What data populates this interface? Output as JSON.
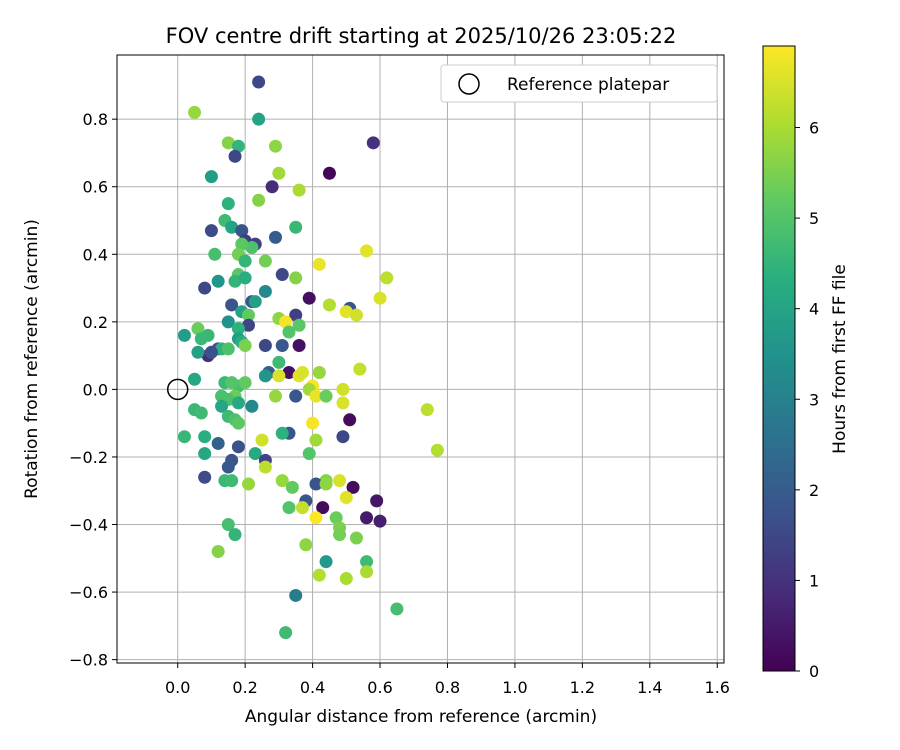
{
  "chart_data": {
    "type": "scatter",
    "title": "FOV centre drift starting at 2025/10/26 23:05:22",
    "xlabel": "Angular distance from reference (arcmin)",
    "ylabel": "Rotation from reference (arcmin)",
    "xlim": [
      -0.18,
      1.62
    ],
    "ylim": [
      -0.81,
      0.99
    ],
    "xticks": [
      0.0,
      0.2,
      0.4,
      0.6,
      0.8,
      1.0,
      1.2,
      1.4,
      1.6
    ],
    "xtick_labels": [
      "0.0",
      "0.2",
      "0.4",
      "0.6",
      "0.8",
      "1.0",
      "1.2",
      "1.4",
      "1.6"
    ],
    "yticks": [
      -0.8,
      -0.6,
      -0.4,
      -0.2,
      0.0,
      0.2,
      0.4,
      0.6,
      0.8
    ],
    "ytick_labels": [
      "−0.8",
      "−0.6",
      "−0.4",
      "−0.2",
      "0.0",
      "0.2",
      "0.4",
      "0.6",
      "0.8"
    ],
    "grid": true,
    "legend": {
      "position": "top-right",
      "entries": [
        "Reference platepar"
      ]
    },
    "reference_point": {
      "x": 0.0,
      "y": 0.0,
      "label": "Reference platepar"
    },
    "colorbar": {
      "label": "Hours from first FF file",
      "colormap": "viridis",
      "range": [
        0,
        6.9
      ],
      "ticks": [
        0,
        1,
        2,
        3,
        4,
        5,
        6
      ],
      "tick_labels": [
        "0",
        "1",
        "2",
        "3",
        "4",
        "5",
        "6"
      ]
    },
    "points": [
      [
        0.24,
        0.91,
        1.5
      ],
      [
        0.05,
        0.82,
        5.8
      ],
      [
        0.24,
        0.8,
        4.0
      ],
      [
        0.58,
        0.73,
        1.0
      ],
      [
        0.15,
        0.73,
        5.6
      ],
      [
        0.18,
        0.72,
        4.5
      ],
      [
        0.29,
        0.72,
        5.7
      ],
      [
        0.17,
        0.69,
        1.5
      ],
      [
        0.45,
        0.64,
        0.1
      ],
      [
        0.3,
        0.64,
        5.9
      ],
      [
        0.1,
        0.63,
        3.8
      ],
      [
        0.28,
        0.6,
        0.9
      ],
      [
        0.36,
        0.59,
        6.0
      ],
      [
        0.15,
        0.55,
        4.4
      ],
      [
        0.24,
        0.56,
        5.6
      ],
      [
        0.14,
        0.5,
        4.7
      ],
      [
        0.16,
        0.48,
        4.0
      ],
      [
        0.35,
        0.48,
        4.6
      ],
      [
        0.1,
        0.47,
        1.6
      ],
      [
        0.19,
        0.47,
        1.8
      ],
      [
        0.2,
        0.44,
        1.3
      ],
      [
        0.23,
        0.43,
        1.4
      ],
      [
        0.22,
        0.42,
        4.9
      ],
      [
        0.19,
        0.43,
        5.1
      ],
      [
        0.29,
        0.45,
        2.0
      ],
      [
        0.11,
        0.4,
        4.8
      ],
      [
        0.18,
        0.4,
        5.4
      ],
      [
        0.56,
        0.41,
        6.6
      ],
      [
        0.2,
        0.38,
        4.5
      ],
      [
        0.26,
        0.38,
        5.4
      ],
      [
        0.42,
        0.37,
        6.7
      ],
      [
        0.62,
        0.33,
        6.2
      ],
      [
        0.18,
        0.34,
        5.1
      ],
      [
        0.17,
        0.32,
        4.5
      ],
      [
        0.2,
        0.33,
        4.3
      ],
      [
        0.12,
        0.32,
        3.6
      ],
      [
        0.31,
        0.34,
        1.5
      ],
      [
        0.35,
        0.33,
        5.6
      ],
      [
        0.08,
        0.3,
        1.5
      ],
      [
        0.26,
        0.29,
        3.2
      ],
      [
        0.39,
        0.27,
        0.3
      ],
      [
        0.6,
        0.27,
        6.5
      ],
      [
        0.22,
        0.26,
        1.7
      ],
      [
        0.23,
        0.26,
        3.9
      ],
      [
        0.16,
        0.25,
        1.8
      ],
      [
        0.45,
        0.25,
        6.1
      ],
      [
        0.51,
        0.24,
        1.8
      ],
      [
        0.5,
        0.23,
        6.6
      ],
      [
        0.53,
        0.22,
        6.4
      ],
      [
        0.19,
        0.23,
        4.0
      ],
      [
        0.21,
        0.22,
        5.2
      ],
      [
        0.35,
        0.22,
        1.3
      ],
      [
        0.3,
        0.21,
        5.7
      ],
      [
        0.32,
        0.2,
        6.8
      ],
      [
        0.15,
        0.2,
        3.5
      ],
      [
        0.21,
        0.19,
        1.4
      ],
      [
        0.36,
        0.19,
        5.1
      ],
      [
        0.02,
        0.16,
        3.8
      ],
      [
        0.06,
        0.18,
        5.3
      ],
      [
        0.18,
        0.18,
        4.4
      ],
      [
        0.09,
        0.16,
        4.6
      ],
      [
        0.33,
        0.17,
        5.0
      ],
      [
        0.18,
        0.15,
        3.8
      ],
      [
        0.07,
        0.15,
        4.6
      ],
      [
        0.19,
        0.14,
        4.3
      ],
      [
        0.2,
        0.13,
        5.5
      ],
      [
        0.26,
        0.13,
        1.5
      ],
      [
        0.31,
        0.13,
        1.9
      ],
      [
        0.36,
        0.13,
        0.3
      ],
      [
        0.12,
        0.12,
        1.6
      ],
      [
        0.13,
        0.12,
        4.4
      ],
      [
        0.15,
        0.12,
        4.9
      ],
      [
        0.09,
        0.1,
        0.9
      ],
      [
        0.06,
        0.11,
        3.9
      ],
      [
        0.1,
        0.11,
        1.7
      ],
      [
        0.3,
        0.08,
        4.7
      ],
      [
        0.54,
        0.06,
        6.3
      ],
      [
        0.33,
        0.05,
        0.3
      ],
      [
        0.27,
        0.05,
        2.0
      ],
      [
        0.36,
        0.04,
        6.6
      ],
      [
        0.37,
        0.05,
        6.5
      ],
      [
        0.42,
        0.05,
        5.8
      ],
      [
        0.3,
        0.04,
        6.5
      ],
      [
        0.26,
        0.04,
        3.6
      ],
      [
        0.05,
        0.03,
        4.1
      ],
      [
        0.14,
        0.02,
        4.6
      ],
      [
        0.18,
        0.01,
        4.8
      ],
      [
        0.16,
        0.02,
        5.0
      ],
      [
        0.2,
        0.02,
        5.2
      ],
      [
        0.4,
        0.01,
        6.8
      ],
      [
        0.39,
        0.0,
        5.9
      ],
      [
        0.49,
        0.0,
        6.4
      ],
      [
        0.41,
        -0.02,
        6.7
      ],
      [
        0.44,
        -0.02,
        5.3
      ],
      [
        0.35,
        -0.02,
        1.9
      ],
      [
        0.29,
        -0.02,
        5.8
      ],
      [
        0.13,
        -0.02,
        4.9
      ],
      [
        0.17,
        -0.02,
        5.3
      ],
      [
        0.15,
        -0.03,
        4.9
      ],
      [
        0.18,
        -0.04,
        4.2
      ],
      [
        0.22,
        -0.05,
        3.2
      ],
      [
        0.13,
        -0.05,
        4.1
      ],
      [
        0.49,
        -0.04,
        6.5
      ],
      [
        0.74,
        -0.06,
        6.2
      ],
      [
        0.05,
        -0.06,
        4.6
      ],
      [
        0.07,
        -0.07,
        4.7
      ],
      [
        0.15,
        -0.08,
        4.7
      ],
      [
        0.17,
        -0.09,
        4.9
      ],
      [
        0.51,
        -0.09,
        0.2
      ],
      [
        0.18,
        -0.1,
        5.1
      ],
      [
        0.4,
        -0.1,
        6.8
      ],
      [
        0.33,
        -0.13,
        1.8
      ],
      [
        0.31,
        -0.13,
        4.4
      ],
      [
        0.02,
        -0.14,
        4.6
      ],
      [
        0.08,
        -0.14,
        4.3
      ],
      [
        0.49,
        -0.14,
        1.5
      ],
      [
        0.25,
        -0.15,
        6.4
      ],
      [
        0.41,
        -0.15,
        5.9
      ],
      [
        0.12,
        -0.16,
        2.1
      ],
      [
        0.18,
        -0.17,
        1.7
      ],
      [
        0.77,
        -0.18,
        6.1
      ],
      [
        0.08,
        -0.19,
        4.1
      ],
      [
        0.39,
        -0.19,
        5.0
      ],
      [
        0.23,
        -0.19,
        4.2
      ],
      [
        0.16,
        -0.21,
        1.8
      ],
      [
        0.26,
        -0.21,
        1.4
      ],
      [
        0.15,
        -0.23,
        1.9
      ],
      [
        0.26,
        -0.23,
        6.2
      ],
      [
        0.08,
        -0.26,
        1.6
      ],
      [
        0.31,
        -0.27,
        5.8
      ],
      [
        0.48,
        -0.27,
        6.5
      ],
      [
        0.44,
        -0.27,
        5.6
      ],
      [
        0.14,
        -0.27,
        4.6
      ],
      [
        0.16,
        -0.27,
        4.7
      ],
      [
        0.21,
        -0.28,
        5.8
      ],
      [
        0.41,
        -0.28,
        1.8
      ],
      [
        0.44,
        -0.28,
        5.7
      ],
      [
        0.52,
        -0.29,
        0.2
      ],
      [
        0.34,
        -0.29,
        5.2
      ],
      [
        0.5,
        -0.32,
        6.6
      ],
      [
        0.38,
        -0.33,
        1.8
      ],
      [
        0.59,
        -0.33,
        0.4
      ],
      [
        0.43,
        -0.35,
        0.2
      ],
      [
        0.33,
        -0.35,
        5.0
      ],
      [
        0.37,
        -0.35,
        6.3
      ],
      [
        0.41,
        -0.38,
        6.9
      ],
      [
        0.47,
        -0.38,
        5.3
      ],
      [
        0.56,
        -0.38,
        0.5
      ],
      [
        0.6,
        -0.39,
        0.6
      ],
      [
        0.15,
        -0.4,
        4.8
      ],
      [
        0.48,
        -0.41,
        5.5
      ],
      [
        0.48,
        -0.43,
        5.4
      ],
      [
        0.17,
        -0.43,
        4.5
      ],
      [
        0.53,
        -0.44,
        5.5
      ],
      [
        0.38,
        -0.46,
        5.7
      ],
      [
        0.12,
        -0.48,
        5.6
      ],
      [
        0.56,
        -0.51,
        4.7
      ],
      [
        0.44,
        -0.51,
        3.7
      ],
      [
        0.56,
        -0.54,
        6.0
      ],
      [
        0.42,
        -0.55,
        6.1
      ],
      [
        0.5,
        -0.56,
        6.0
      ],
      [
        0.35,
        -0.61,
        2.9
      ],
      [
        0.65,
        -0.65,
        4.8
      ],
      [
        0.32,
        -0.72,
        4.7
      ]
    ]
  }
}
